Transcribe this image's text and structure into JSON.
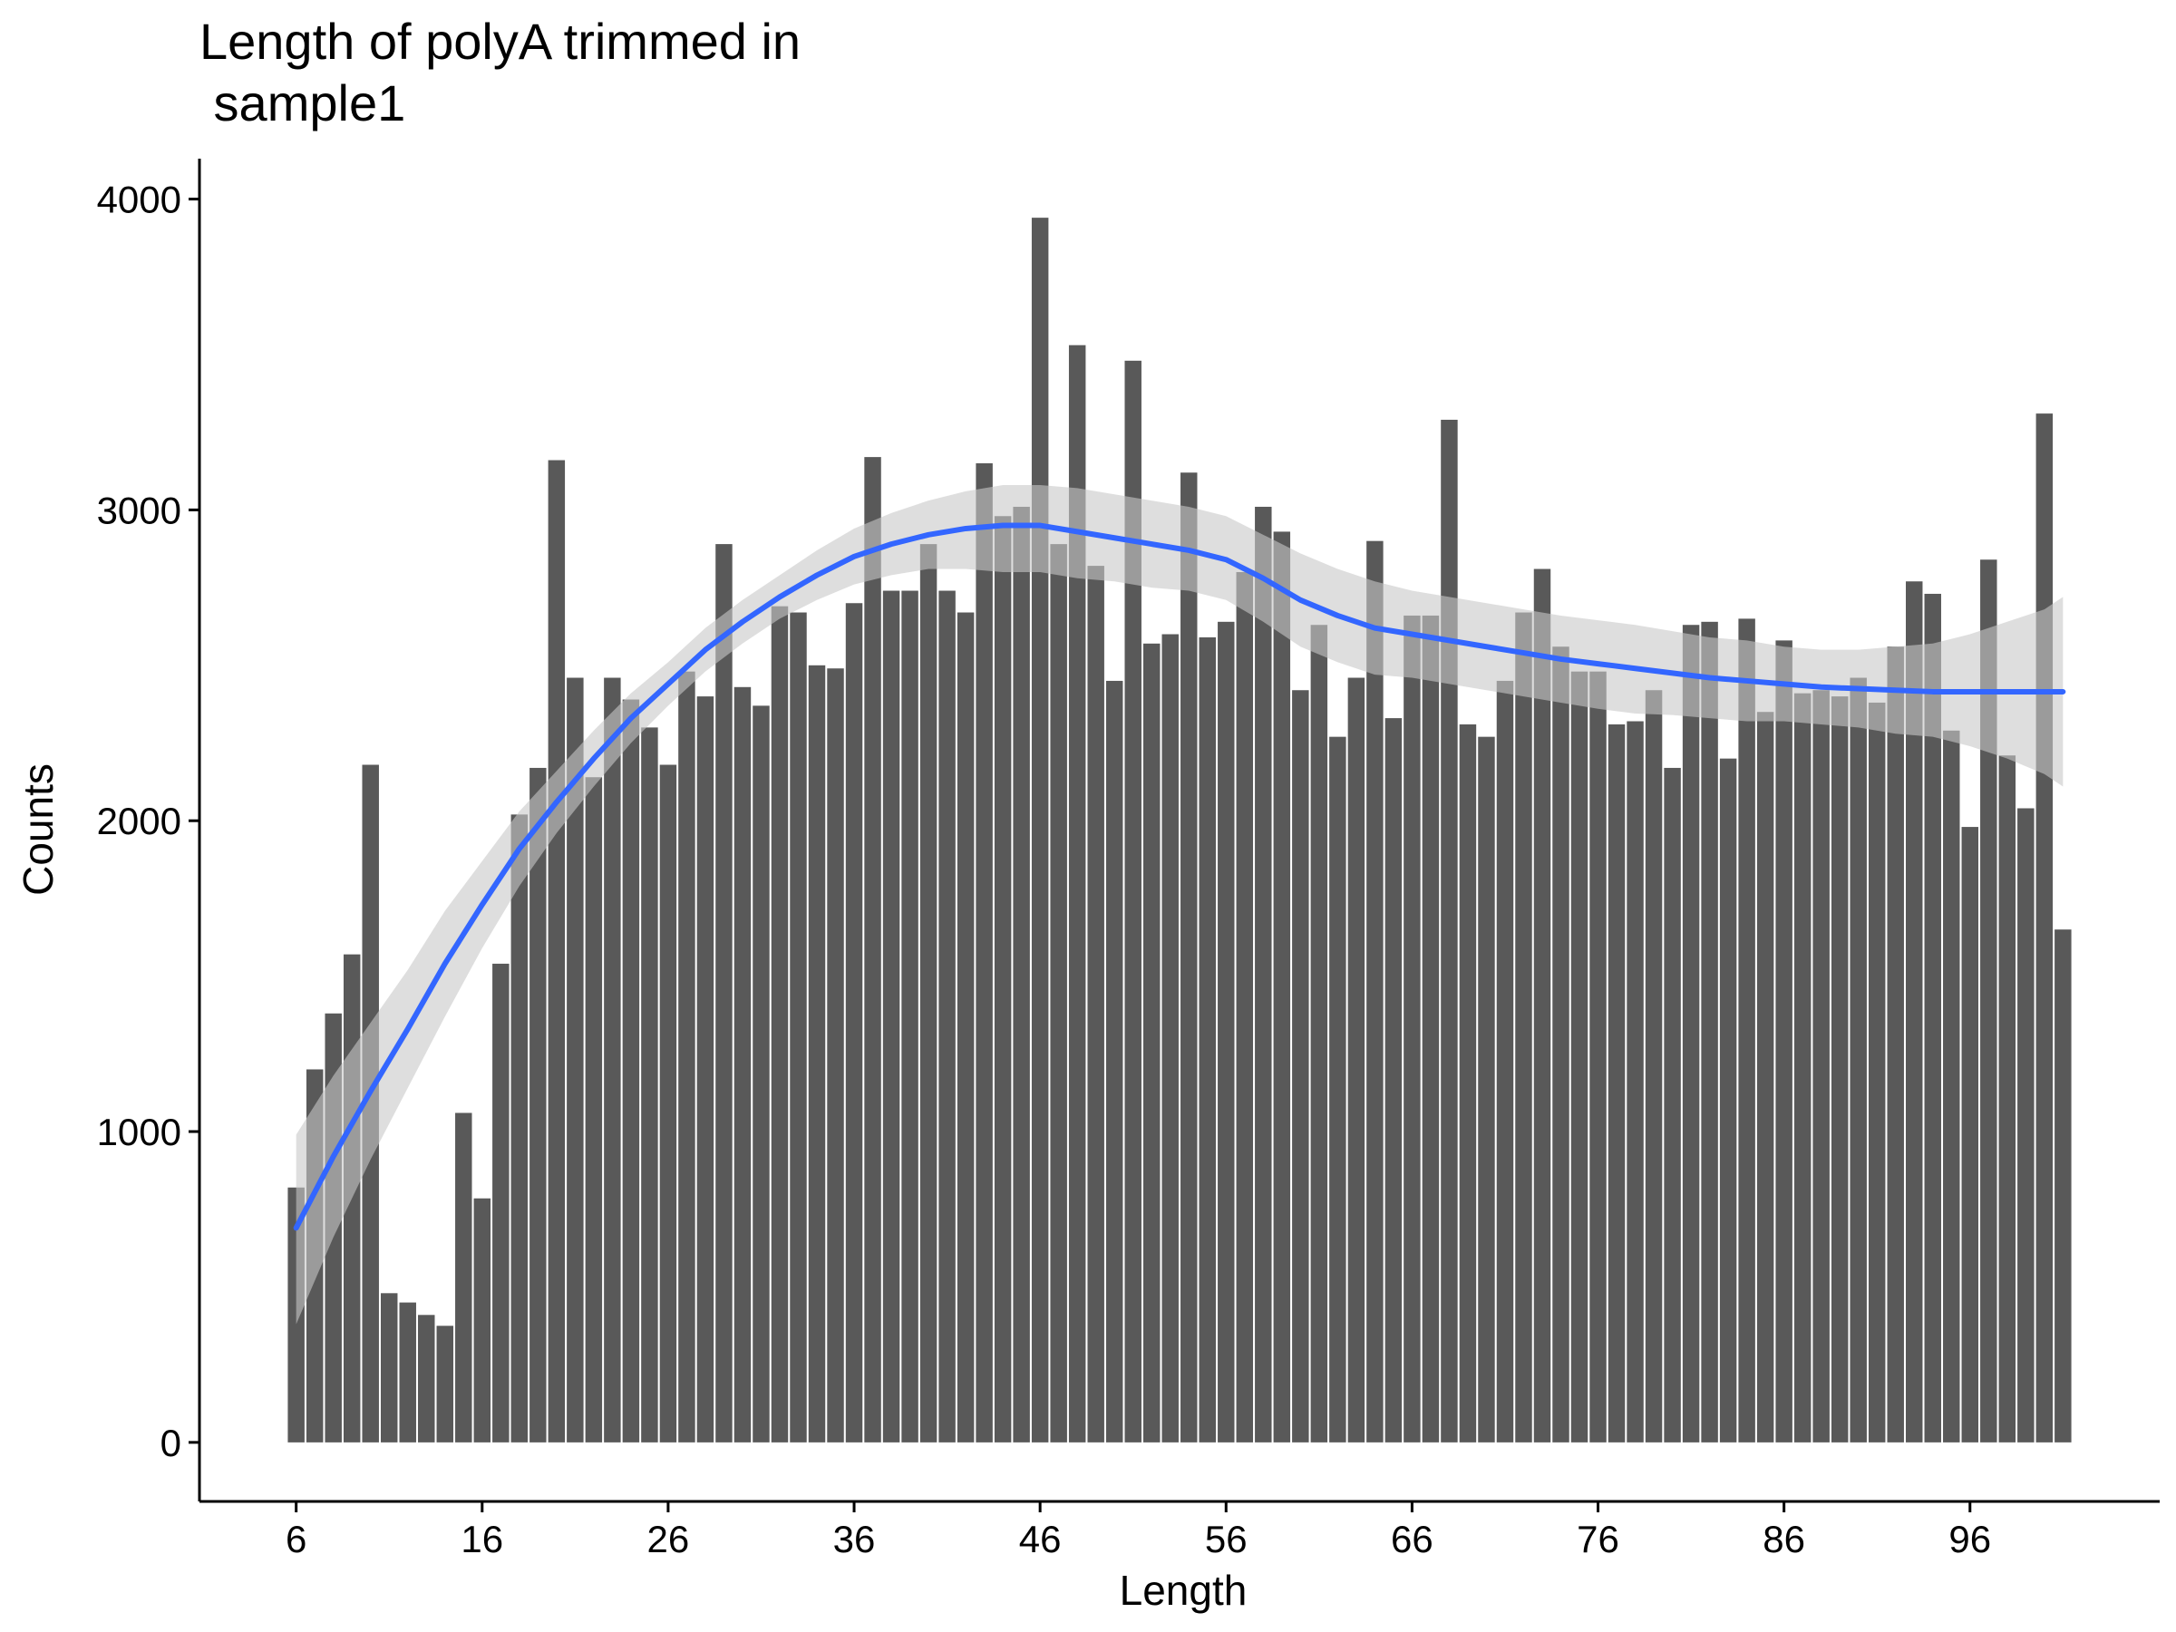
{
  "chart_data": {
    "type": "bar",
    "title_lines": [
      "Length of polyA trimmed in",
      " sample1"
    ],
    "xlabel": "Length",
    "ylabel": "Counts",
    "xlim": [
      0.8,
      106.2
    ],
    "ylim": [
      -190,
      4130
    ],
    "x_ticks": [
      6,
      16,
      26,
      36,
      46,
      56,
      66,
      76,
      86,
      96
    ],
    "y_ticks": [
      0,
      1000,
      2000,
      3000,
      4000
    ],
    "grid": false,
    "legend": "none",
    "bar_color": "#595959",
    "bars": {
      "x": [
        6,
        7,
        8,
        9,
        10,
        11,
        12,
        13,
        14,
        15,
        16,
        17,
        18,
        19,
        20,
        21,
        22,
        23,
        24,
        25,
        26,
        27,
        28,
        29,
        30,
        31,
        32,
        33,
        34,
        35,
        36,
        37,
        38,
        39,
        40,
        41,
        42,
        43,
        44,
        45,
        46,
        47,
        48,
        49,
        50,
        51,
        52,
        53,
        54,
        55,
        56,
        57,
        58,
        59,
        60,
        61,
        62,
        63,
        64,
        65,
        66,
        67,
        68,
        69,
        70,
        71,
        72,
        73,
        74,
        75,
        76,
        77,
        78,
        79,
        80,
        81,
        82,
        83,
        84,
        85,
        86,
        87,
        88,
        89,
        90,
        91,
        92,
        93,
        94,
        95,
        96,
        97,
        98,
        99,
        100,
        101
      ],
      "values": [
        820,
        1200,
        1380,
        1570,
        2180,
        480,
        450,
        410,
        375,
        1060,
        785,
        1540,
        2020,
        2170,
        3160,
        2460,
        2140,
        2460,
        2390,
        2300,
        2180,
        2480,
        2400,
        2890,
        2430,
        2370,
        2690,
        2670,
        2500,
        2490,
        2700,
        3170,
        2740,
        2740,
        2890,
        2740,
        2670,
        3150,
        2980,
        3010,
        3940,
        2890,
        3530,
        2820,
        2450,
        3480,
        2570,
        2600,
        3120,
        2590,
        2640,
        2800,
        3010,
        2930,
        2420,
        2630,
        2270,
        2460,
        2900,
        2330,
        2660,
        2660,
        3290,
        2310,
        2270,
        2450,
        2670,
        2810,
        2560,
        2480,
        2480,
        2310,
        2320,
        2420,
        2170,
        2630,
        2640,
        2200,
        2650,
        2350,
        2580,
        2410,
        2420,
        2400,
        2460,
        2380,
        2560,
        2770,
        2730,
        2290,
        1980,
        2840,
        2210,
        2040,
        3310,
        1650
      ]
    },
    "smooth": {
      "color": "#3366FF",
      "ribbon_color": "#c8c8c8",
      "x": [
        6,
        8,
        10,
        12,
        14,
        16,
        18,
        20,
        22,
        24,
        26,
        28,
        30,
        32,
        34,
        36,
        38,
        40,
        42,
        44,
        46,
        48,
        50,
        52,
        54,
        56,
        58,
        60,
        62,
        64,
        66,
        68,
        70,
        72,
        74,
        76,
        78,
        80,
        82,
        84,
        86,
        88,
        90,
        92,
        94,
        96,
        98,
        100,
        101
      ],
      "y": [
        690,
        920,
        1130,
        1330,
        1540,
        1730,
        1910,
        2060,
        2200,
        2330,
        2440,
        2550,
        2640,
        2720,
        2790,
        2850,
        2890,
        2920,
        2940,
        2950,
        2950,
        2930,
        2910,
        2890,
        2870,
        2840,
        2780,
        2710,
        2660,
        2620,
        2600,
        2580,
        2560,
        2540,
        2520,
        2505,
        2490,
        2475,
        2460,
        2450,
        2440,
        2430,
        2425,
        2420,
        2415,
        2415,
        2415,
        2415,
        2415
      ],
      "lower": [
        380,
        660,
        910,
        1140,
        1370,
        1590,
        1790,
        1960,
        2110,
        2250,
        2370,
        2480,
        2570,
        2650,
        2710,
        2760,
        2790,
        2810,
        2810,
        2800,
        2800,
        2780,
        2770,
        2750,
        2740,
        2710,
        2640,
        2560,
        2510,
        2470,
        2460,
        2440,
        2420,
        2400,
        2380,
        2360,
        2345,
        2340,
        2330,
        2320,
        2320,
        2310,
        2300,
        2280,
        2270,
        2240,
        2200,
        2150,
        2110
      ],
      "upper": [
        990,
        1180,
        1350,
        1520,
        1710,
        1870,
        2030,
        2160,
        2290,
        2410,
        2510,
        2620,
        2710,
        2790,
        2870,
        2940,
        2990,
        3030,
        3060,
        3080,
        3080,
        3070,
        3050,
        3030,
        3010,
        2980,
        2920,
        2860,
        2810,
        2770,
        2740,
        2720,
        2700,
        2680,
        2660,
        2645,
        2630,
        2610,
        2590,
        2580,
        2560,
        2550,
        2550,
        2560,
        2570,
        2600,
        2640,
        2680,
        2720
      ]
    }
  }
}
